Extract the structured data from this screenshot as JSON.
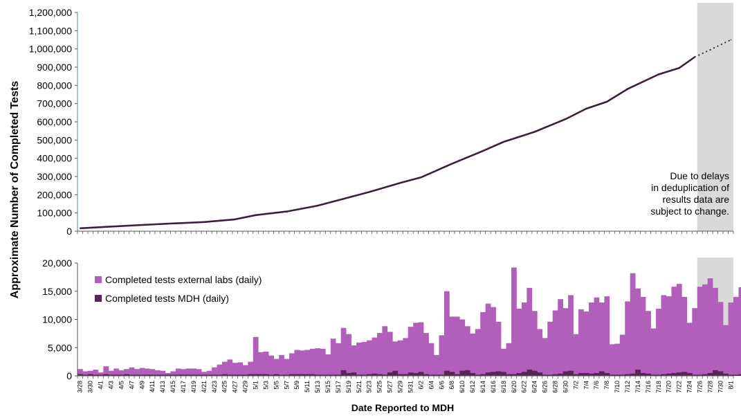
{
  "chart_data": {
    "ylabel": "Approximate Number of Completed Tests",
    "xlabel": "Date Reported to MDH",
    "note_lines": [
      "Due to delays",
      "in deduplication of",
      "results data are",
      "subject to change."
    ],
    "colors": {
      "cumulative": "#3b1f3c",
      "external": "#b25fbc",
      "mdh": "#572557",
      "shade": "#d9d9d9",
      "axis": "#555555"
    },
    "date_labels": [
      "3/28",
      "3/30",
      "4/1",
      "4/3",
      "4/5",
      "4/7",
      "4/9",
      "4/11",
      "4/13",
      "4/15",
      "4/17",
      "4/19",
      "4/21",
      "4/23",
      "4/25",
      "4/27",
      "4/29",
      "5/1",
      "5/3",
      "5/5",
      "5/7",
      "5/9",
      "5/11",
      "5/13",
      "5/15",
      "5/17",
      "5/19",
      "5/21",
      "5/23",
      "5/25",
      "5/27",
      "5/29",
      "5/31",
      "6/2",
      "6/4",
      "6/6",
      "6/8",
      "6/10",
      "6/12",
      "6/14",
      "6/16",
      "6/18",
      "6/20",
      "6/22",
      "6/24",
      "6/26",
      "6/28",
      "6/30",
      "7/2",
      "7/4",
      "7/6",
      "7/8",
      "7/10",
      "7/12",
      "7/14",
      "7/16",
      "7/18",
      "7/20",
      "7/22",
      "7/24",
      "7/26",
      "7/28",
      "7/30",
      "8/1"
    ],
    "charts": [
      {
        "type": "line",
        "title": "",
        "ylim": [
          0,
          1200000
        ],
        "yticks": [
          "0",
          "100,000",
          "200,000",
          "300,000",
          "400,000",
          "500,000",
          "600,000",
          "700,000",
          "800,000",
          "900,000",
          "1,000,000",
          "1,100,000",
          "1,200,000"
        ],
        "shaded_from_date": "7/26",
        "series": [
          {
            "style": "solid",
            "x": [
              "3/28",
              "4/5",
              "4/13",
              "4/21",
              "4/27",
              "5/1",
              "5/7",
              "5/13",
              "5/17",
              "5/23",
              "5/29",
              "6/2",
              "6/8",
              "6/14",
              "6/18",
              "6/24",
              "6/30",
              "7/4",
              "7/8",
              "7/12",
              "7/18",
              "7/22",
              "7/25"
            ],
            "values": [
              16000,
              28000,
              40000,
              50000,
              65000,
              88000,
              108000,
              140000,
              170000,
              215000,
              265000,
              295000,
              370000,
              440000,
              490000,
              545000,
              615000,
              672000,
              710000,
              780000,
              860000,
              895000,
              955000
            ]
          },
          {
            "style": "dotted",
            "x": [
              "7/25",
              "7/28",
              "8/1"
            ],
            "values": [
              955000,
              995000,
              1050000
            ]
          }
        ]
      },
      {
        "type": "bar",
        "stacked": true,
        "ylim": [
          0,
          20000
        ],
        "yticks": [
          "0",
          "5,000",
          "10,000",
          "15,000",
          "20,000"
        ],
        "shaded_from_date": "7/26",
        "legend_position": "top-left",
        "x_start": "3/28",
        "series": [
          {
            "name": "Completed tests external labs (daily)",
            "color": "#b25fbc",
            "values": [
              1200,
              800,
              900,
              1100,
              600,
              1700,
              900,
              1300,
              1000,
              1200,
              1500,
              1200,
              1400,
              1300,
              1200,
              1000,
              900,
              500,
              800,
              1300,
              1200,
              1300,
              1300,
              1200,
              700,
              900,
              1500,
              2000,
              2500,
              2900,
              2300,
              2400,
              1900,
              2500,
              6900,
              4200,
              4300,
              3600,
              3000,
              3700,
              3000,
              4000,
              4600,
              4500,
              4600,
              4800,
              4900,
              4800,
              3800,
              6600,
              5800,
              8500,
              7400,
              5400,
              5900,
              6000,
              6300,
              6800,
              7600,
              8800,
              7800,
              6100,
              6300,
              6700,
              8700,
              9400,
              9500,
              7600,
              5800,
              3700,
              7200,
              15000,
              10500,
              10500,
              10000,
              8800,
              7500,
              8300,
              11300,
              12800,
              12200,
              9600,
              4800,
              5800,
              19200,
              11900,
              13000,
              15600,
              11500,
              8300,
              6700,
              9600,
              11600,
              13600,
              12000,
              14300,
              7400,
              11800,
              11400,
              13000,
              13900,
              13000,
              14100,
              5600,
              5700,
              7300,
              13200,
              18200,
              15500,
              14000,
              11500,
              8400,
              11900,
              14300,
              14100,
              15800,
              16300,
              14000,
              9400,
              12000,
              15800,
              16200,
              17300,
              15600,
              13100,
              9000,
              13000,
              14000,
              15700,
              14300,
              14200
            ]
          },
          {
            "name": "Completed tests MDH (daily)",
            "color": "#572557",
            "values": [
              300,
              200,
              300,
              200,
              200,
              300,
              200,
              200,
              200,
              300,
              200,
              200,
              200,
              200,
              200,
              200,
              200,
              200,
              200,
              200,
              200,
              200,
              200,
              200,
              200,
              200,
              200,
              200,
              300,
              200,
              200,
              200,
              200,
              300,
              300,
              300,
              300,
              200,
              300,
              200,
              200,
              300,
              300,
              300,
              300,
              300,
              200,
              200,
              200,
              200,
              200,
              1000,
              500,
              600,
              200,
              200,
              300,
              400,
              300,
              200,
              600,
              900,
              300,
              300,
              600,
              500,
              700,
              300,
              200,
              200,
              200,
              900,
              700,
              300,
              900,
              1000,
              500,
              200,
              300,
              600,
              700,
              800,
              700,
              300,
              300,
              500,
              700,
              1100,
              900,
              600,
              200,
              200,
              300,
              400,
              800,
              900,
              300,
              500,
              500,
              400,
              500,
              800,
              500,
              200,
              200,
              200,
              300,
              400,
              1100,
              500,
              400,
              200,
              200,
              300,
              400,
              500,
              600,
              700,
              500,
              200,
              200,
              300,
              500,
              1000,
              800,
              400,
              200,
              200,
              300,
              600,
              900,
              700,
              600,
              500
            ]
          }
        ]
      }
    ]
  }
}
